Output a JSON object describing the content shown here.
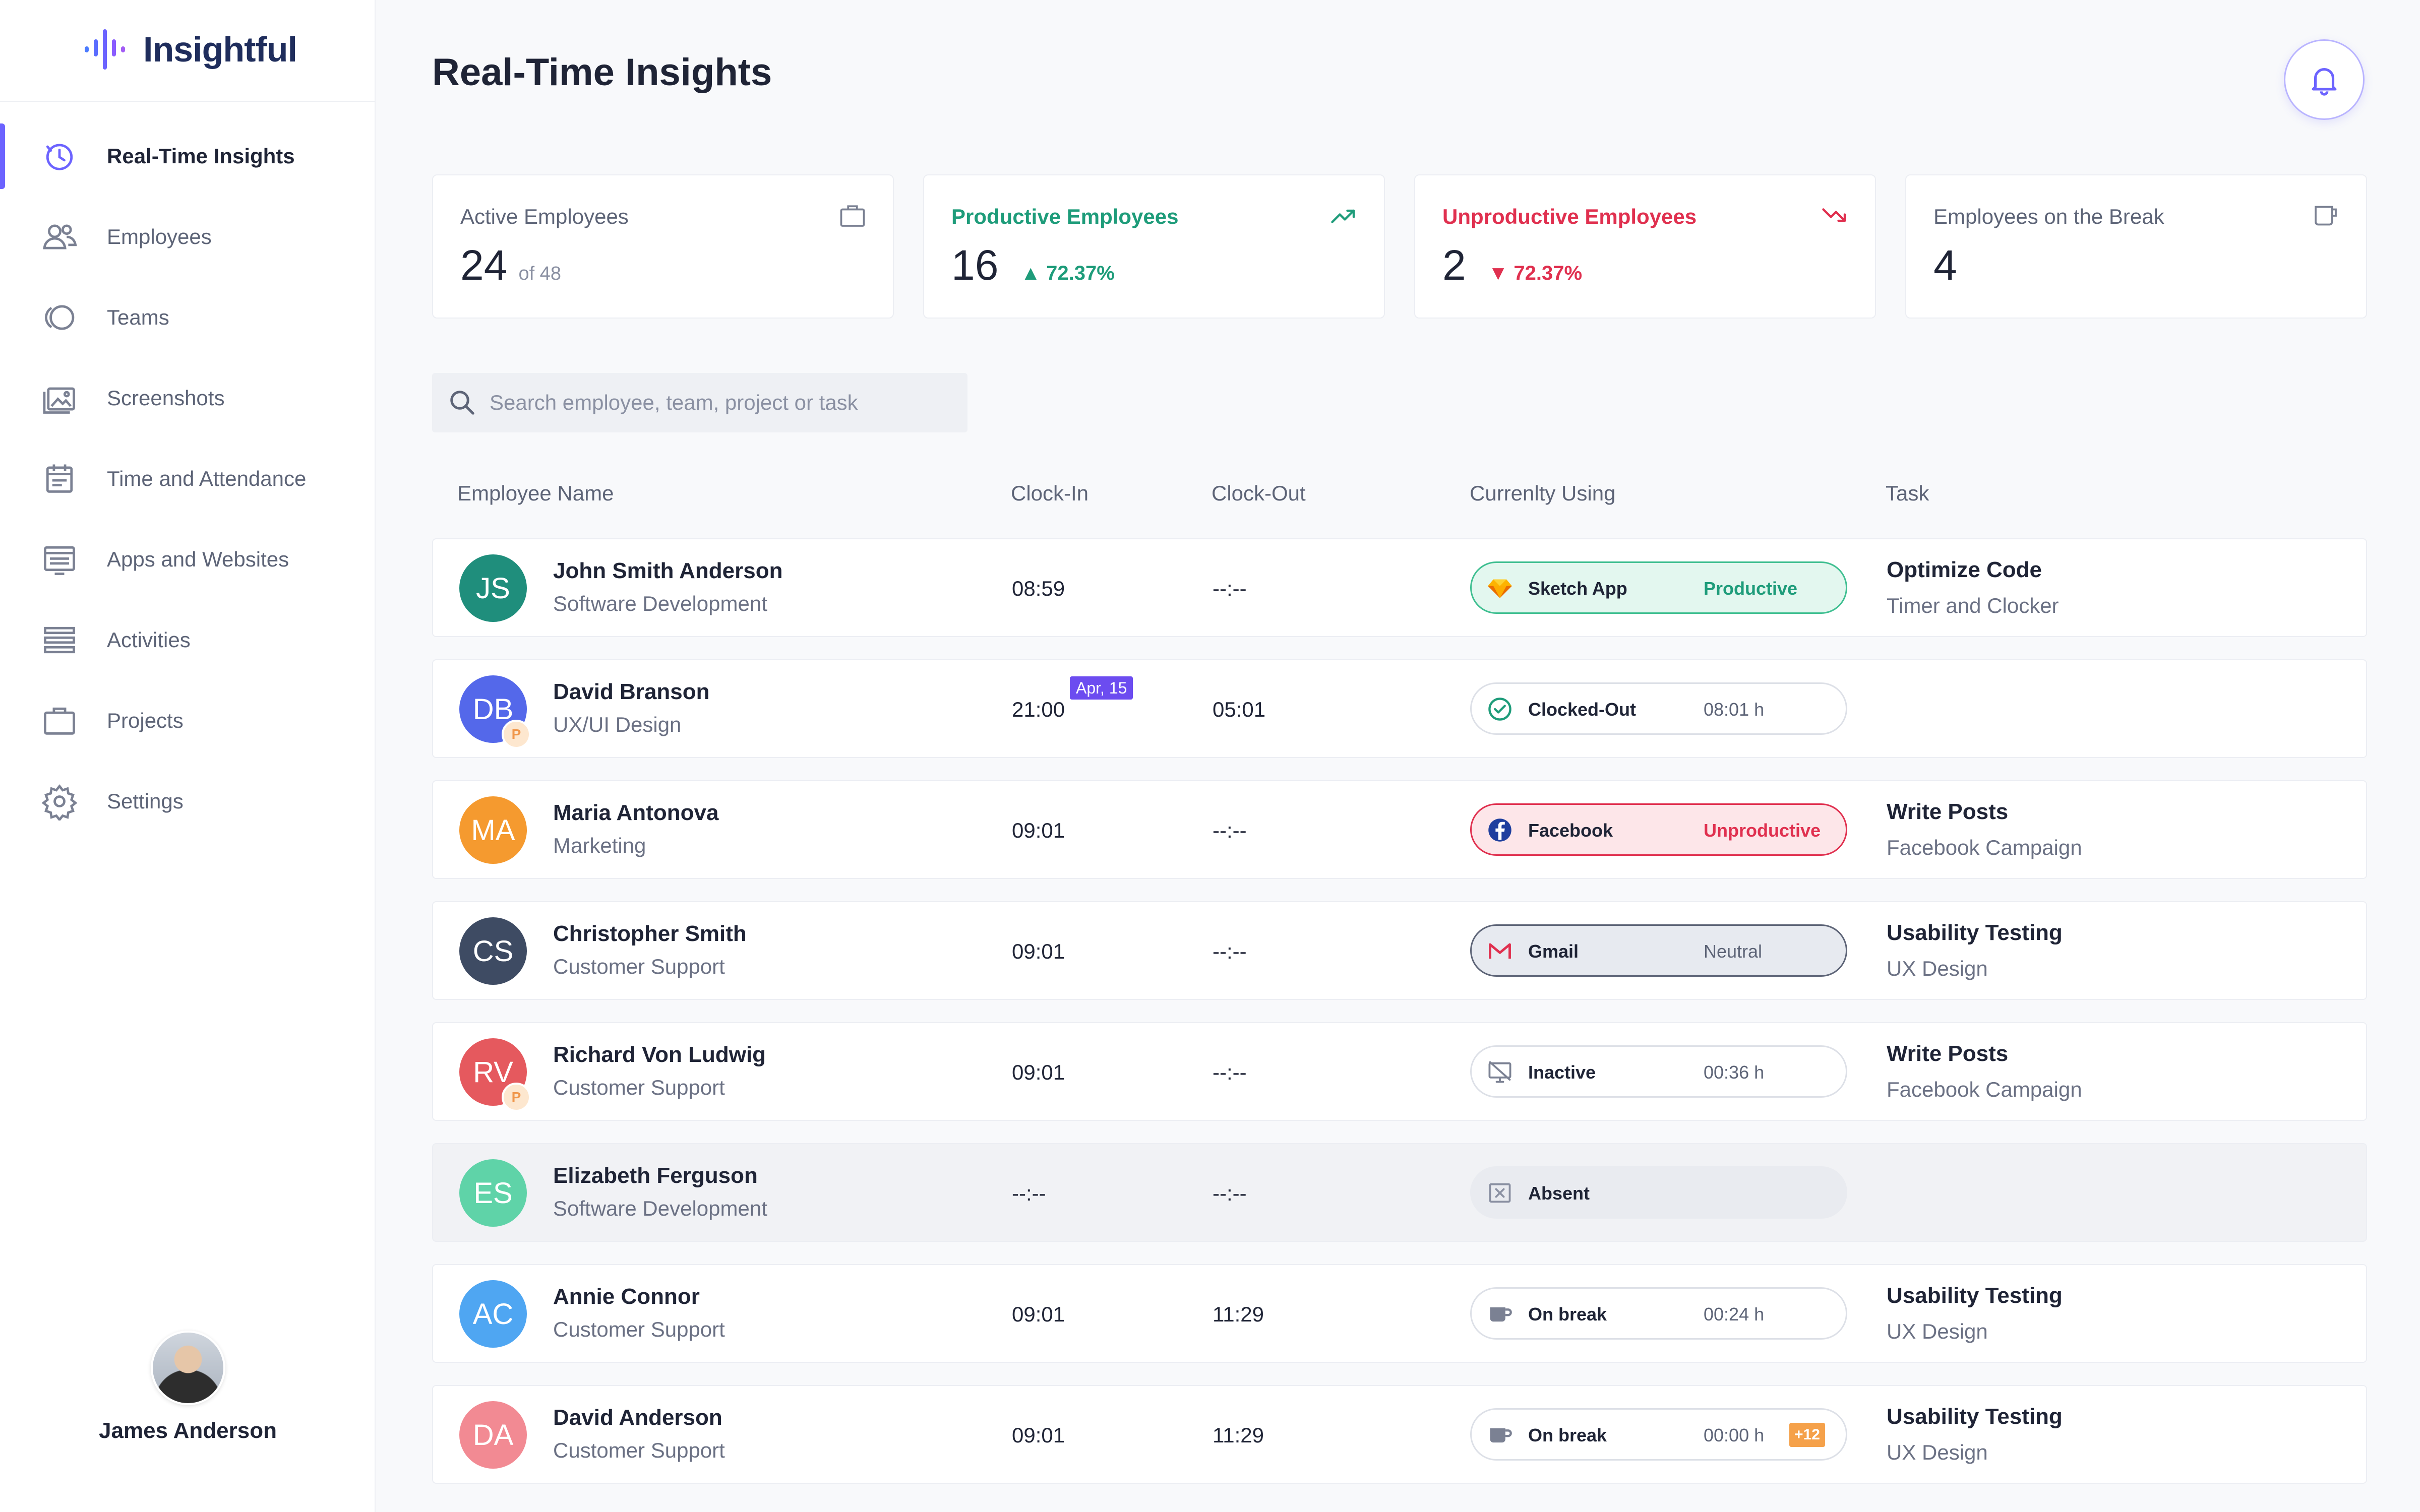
{
  "app": {
    "logo_text": "Insightful"
  },
  "sidebar": {
    "items": [
      {
        "label": "Real-Time Insights",
        "icon": "clock-refresh-icon",
        "active": true
      },
      {
        "label": "Employees",
        "icon": "users-icon",
        "active": false
      },
      {
        "label": "Teams",
        "icon": "teams-icon",
        "active": false
      },
      {
        "label": "Screenshots",
        "icon": "image-stack-icon",
        "active": false
      },
      {
        "label": "Time and Attendance",
        "icon": "calendar-icon",
        "active": false
      },
      {
        "label": "Apps and Websites",
        "icon": "app-window-icon",
        "active": false
      },
      {
        "label": "Activities",
        "icon": "list-icon",
        "active": false
      },
      {
        "label": "Projects",
        "icon": "briefcase-icon",
        "active": false
      },
      {
        "label": "Settings",
        "icon": "gear-icon",
        "active": false
      }
    ],
    "user": {
      "name": "James Anderson"
    }
  },
  "header": {
    "title": "Real-Time Insights"
  },
  "stats": {
    "active": {
      "label": "Active Employees",
      "value": "24",
      "sub": "of 48"
    },
    "productive": {
      "label": "Productive Employees",
      "value": "16",
      "trend": "▲ 72.37%"
    },
    "unproductive": {
      "label": "Unproductive Employees",
      "value": "2",
      "trend": "▼ 72.37%"
    },
    "on_break": {
      "label": "Employees on the Break",
      "value": "4"
    }
  },
  "search": {
    "placeholder": "Search employee, team, project or task"
  },
  "table": {
    "headers": {
      "name": "Employee Name",
      "clock_in": "Clock-In",
      "clock_out": "Clock-Out",
      "using": "Currenlty Using",
      "task": "Task"
    },
    "rows": [
      {
        "initials": "JS",
        "name": "John Smith Anderson",
        "dept": "Software Development",
        "clock_in": "08:59",
        "clock_out": "--:--",
        "date_badge": "",
        "status": {
          "kind": "productive",
          "app": "Sketch App",
          "meta": "Productive",
          "icon": "sketch-diamond-icon",
          "extra": ""
        },
        "task": "Optimize Code",
        "task_sub": "Timer and Clocker",
        "avatar_color": "#1f8e7c",
        "badge": "",
        "dim": false
      },
      {
        "initials": "DB",
        "name": "David Branson",
        "dept": "UX/UI Design",
        "clock_in": "21:00",
        "clock_out": "05:01",
        "date_badge": "Apr, 15",
        "status": {
          "kind": "clocked-out",
          "app": "Clocked-Out",
          "meta": "08:01 h",
          "icon": "check-circle-icon",
          "extra": ""
        },
        "task": "",
        "task_sub": "",
        "avatar_color": "#5468ea",
        "badge": "P",
        "dim": false
      },
      {
        "initials": "MA",
        "name": "Maria Antonova",
        "dept": "Marketing",
        "clock_in": "09:01",
        "clock_out": "--:--",
        "date_badge": "",
        "status": {
          "kind": "unproductive",
          "app": "Facebook",
          "meta": "Unproductive",
          "icon": "facebook-icon",
          "extra": ""
        },
        "task": "Write Posts",
        "task_sub": "Facebook Campaign",
        "avatar_color": "#f59a2f",
        "badge": "",
        "dim": false
      },
      {
        "initials": "CS",
        "name": "Christopher Smith",
        "dept": "Customer Support",
        "clock_in": "09:01",
        "clock_out": "--:--",
        "date_badge": "",
        "status": {
          "kind": "neutral",
          "app": "Gmail",
          "meta": "Neutral",
          "icon": "gmail-icon",
          "extra": ""
        },
        "task": "Usability Testing",
        "task_sub": "UX Design",
        "avatar_color": "#3e4b63",
        "badge": "",
        "dim": false
      },
      {
        "initials": "RV",
        "name": "Richard Von Ludwig",
        "dept": "Customer Support",
        "clock_in": "09:01",
        "clock_out": "--:--",
        "date_badge": "",
        "status": {
          "kind": "inactive",
          "app": "Inactive",
          "meta": "00:36 h",
          "icon": "inactive-screen-icon",
          "extra": ""
        },
        "task": "Write Posts",
        "task_sub": "Facebook Campaign",
        "avatar_color": "#e5595e",
        "badge": "P",
        "dim": false
      },
      {
        "initials": "ES",
        "name": "Elizabeth Ferguson",
        "dept": "Software Development",
        "clock_in": "--:--",
        "clock_out": "--:--",
        "date_badge": "",
        "status": {
          "kind": "absent",
          "app": "Absent",
          "meta": "",
          "icon": "absent-x-icon",
          "extra": ""
        },
        "task": "",
        "task_sub": "",
        "avatar_color": "#5fd3a8",
        "badge": "",
        "dim": true
      },
      {
        "initials": "AC",
        "name": "Annie Connor",
        "dept": "Customer Support",
        "clock_in": "09:01",
        "clock_out": "11:29",
        "date_badge": "",
        "status": {
          "kind": "break",
          "app": "On break",
          "meta": "00:24 h",
          "icon": "coffee-cup-icon",
          "extra": ""
        },
        "task": "Usability Testing",
        "task_sub": "UX Design",
        "avatar_color": "#4fa6f2",
        "badge": "",
        "dim": false
      },
      {
        "initials": "DA",
        "name": "David Anderson",
        "dept": "Customer Support",
        "clock_in": "09:01",
        "clock_out": "11:29",
        "date_badge": "",
        "status": {
          "kind": "break",
          "app": "On break",
          "meta": "00:00 h",
          "icon": "coffee-cup-icon",
          "extra": "+12"
        },
        "task": "Usability Testing",
        "task_sub": "UX Design",
        "avatar_color": "#f28a93",
        "badge": "",
        "dim": false
      }
    ]
  },
  "colors": {
    "accent": "#6c63ff",
    "productive": "#1e9c7a",
    "unproductive": "#e0304f",
    "text": "#1f2436"
  }
}
